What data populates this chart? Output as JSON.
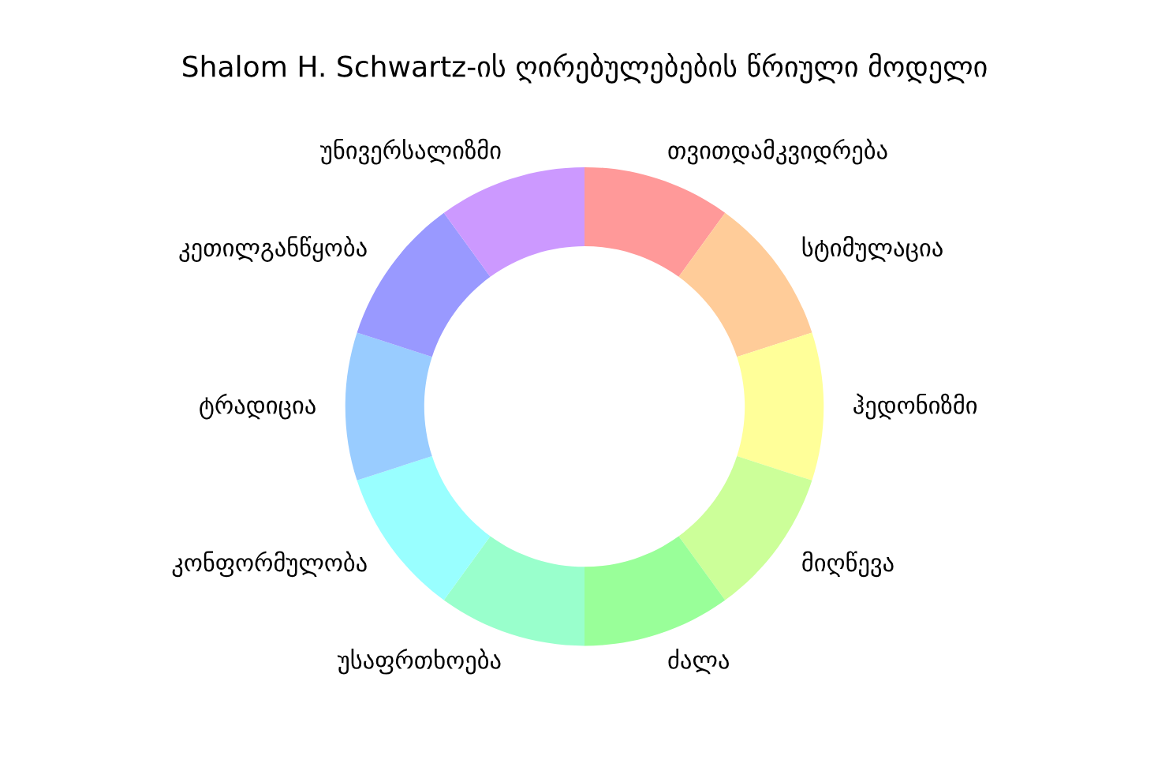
{
  "chart_data": {
    "type": "donut",
    "title": "Shalom H. Schwartz-ის ღირებულებების წრიული მოდელი",
    "categories": [
      "თვითდამკვიდრება",
      "სტიმულაცია",
      "ჰედონიზმი",
      "მიღწევა",
      "ძალა",
      "უსაფრთხოება",
      "კონფორმულობა",
      "ტრადიცია",
      "კეთილგანწყობა",
      "უნივერსალიზმი"
    ],
    "values": [
      10,
      10,
      10,
      10,
      10,
      10,
      10,
      10,
      10,
      10
    ],
    "colors": [
      "#ff9999",
      "#ffcc99",
      "#ffff99",
      "#ccff99",
      "#99ff99",
      "#99ffcc",
      "#99ffff",
      "#99ccff",
      "#9999ff",
      "#cc99ff"
    ],
    "legend": false
  }
}
